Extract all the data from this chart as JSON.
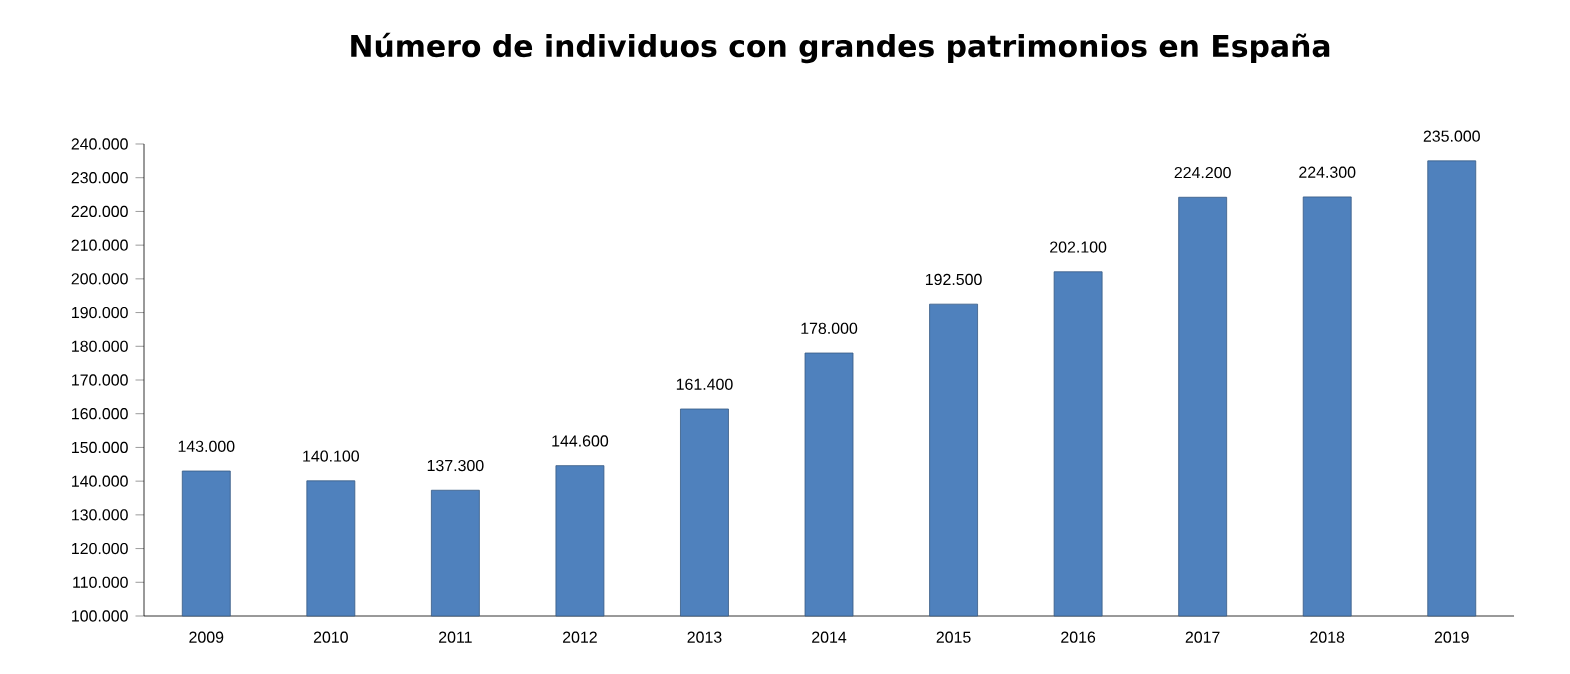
{
  "chart_data": {
    "type": "bar",
    "title": "Número de individuos con grandes patrimonios en España",
    "categories": [
      "2009",
      "2010",
      "2011",
      "2012",
      "2013",
      "2014",
      "2015",
      "2016",
      "2017",
      "2018",
      "2019"
    ],
    "values": [
      143000,
      140100,
      137300,
      144600,
      161400,
      178000,
      192500,
      202100,
      224200,
      224300,
      235000
    ],
    "value_labels": [
      "143.000",
      "140.100",
      "137.300",
      "144.600",
      "161.400",
      "178.000",
      "192.500",
      "202.100",
      "224.200",
      "224.300",
      "235.000"
    ],
    "color": "#4f81bd",
    "ylim": [
      100000,
      240000
    ],
    "yticks": [
      {
        "value": 100000,
        "label": "100.000"
      },
      {
        "value": 110000,
        "label": "110.000"
      },
      {
        "value": 120000,
        "label": "120.000"
      },
      {
        "value": 130000,
        "label": "130.000"
      },
      {
        "value": 140000,
        "label": "140.000"
      },
      {
        "value": 150000,
        "label": "150.000"
      },
      {
        "value": 160000,
        "label": "160.000"
      },
      {
        "value": 170000,
        "label": "170.000"
      },
      {
        "value": 180000,
        "label": "180.000"
      },
      {
        "value": 190000,
        "label": "190.000"
      },
      {
        "value": 200000,
        "label": "200.000"
      },
      {
        "value": 210000,
        "label": "210.000"
      },
      {
        "value": 220000,
        "label": "220.000"
      },
      {
        "value": 230000,
        "label": "230.000"
      },
      {
        "value": 240000,
        "label": "240.000"
      }
    ]
  }
}
